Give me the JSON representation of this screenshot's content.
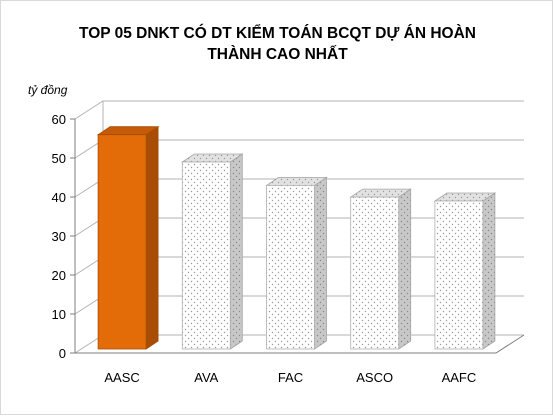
{
  "chart_data": {
    "type": "bar",
    "title_line1": "TOP 05 DNKT CÓ DT KIỂM TOÁN BCQT DỰ ÁN HOÀN",
    "title_line2": "THÀNH CAO NHẤT",
    "unit_label": "tỷ đồng",
    "categories": [
      "AASC",
      "AVA",
      "FAC",
      "ASCO",
      "AAFC"
    ],
    "values": [
      57,
      50,
      44,
      41,
      40
    ],
    "ylim": [
      0,
      60
    ],
    "yticks": [
      "0",
      "10",
      "20",
      "30",
      "40",
      "50",
      "60"
    ],
    "grid": true,
    "three_d": true,
    "colors": {
      "highlight_front": "#e36c09",
      "highlight_side": "#a84d05",
      "highlight_top": "#c55a08",
      "dotted_front": "#ffffff",
      "dotted_dot": "#9a9a9a",
      "dotted_side": "#bfbfbf",
      "dotted_top": "#d9d9d9",
      "grid": "#b3b3b3",
      "axis": "#7f7f7f"
    }
  }
}
